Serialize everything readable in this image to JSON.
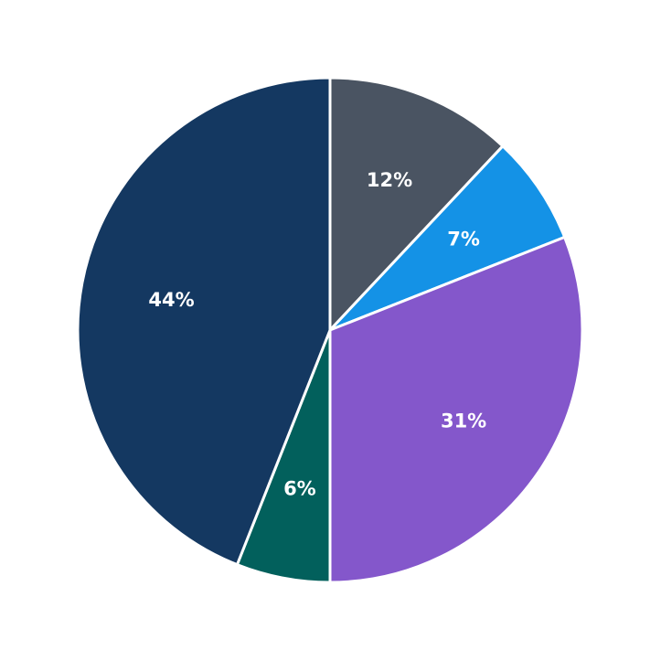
{
  "chart_data": {
    "type": "pie",
    "title": "",
    "categories": [
      "Slice 1",
      "Slice 2",
      "Slice 3",
      "Slice 4",
      "Slice 5"
    ],
    "values": [
      12,
      7,
      31,
      6,
      44
    ],
    "labels": [
      "12%",
      "7%",
      "31%",
      "6%",
      "44%"
    ],
    "colors": [
      "#4a5462",
      "#1492e6",
      "#8457cb",
      "#02605c",
      "#143861"
    ],
    "start_angle_deg": 0,
    "direction": "clockwise",
    "legend": "none",
    "center": [
      361,
      361
    ],
    "radius": 276
  }
}
